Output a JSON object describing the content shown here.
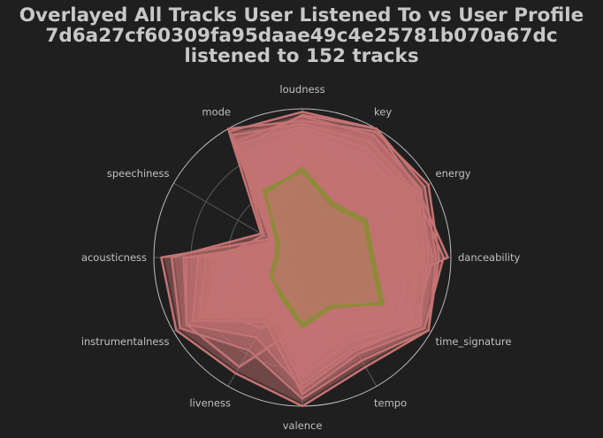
{
  "title_lines": [
    "Overlayed All Tracks User Listened To vs User Profile",
    "7d6a27cf60309fa95daae49c4e25781b070a67dc",
    "listened to 152 tracks"
  ],
  "colors": {
    "background": "#1f1f1f",
    "track_fill": "#c47373",
    "track_line": "#c47373",
    "profile_line": "#8f8a3a",
    "grid": "#5a5a5a",
    "outer_circle": "#bdbdbd",
    "text": "#c8c8c8"
  },
  "chart_data": {
    "type": "radar",
    "axes": [
      "danceability",
      "energy",
      "key",
      "loudness",
      "mode",
      "speechiness",
      "acousticness",
      "instrumentalness",
      "liveness",
      "valence",
      "tempo",
      "time_signature"
    ],
    "rlim": [
      0,
      1
    ],
    "grid": true,
    "profile": [
      0.48,
      0.5,
      0.42,
      0.6,
      0.5,
      0.2,
      0.18,
      0.25,
      0.28,
      0.45,
      0.38,
      0.63
    ],
    "profile_shapes": [
      [
        0.48,
        0.5,
        0.42,
        0.6,
        0.5,
        0.2,
        0.18,
        0.25,
        0.28,
        0.45,
        0.38,
        0.63
      ],
      [
        0.46,
        0.48,
        0.4,
        0.58,
        0.52,
        0.18,
        0.17,
        0.24,
        0.3,
        0.47,
        0.39,
        0.61
      ]
    ],
    "tracks": [
      [
        0.9,
        0.95,
        1.0,
        0.98,
        0.98,
        0.25,
        0.95,
        0.98,
        0.9,
        1.0,
        0.85,
        0.98
      ],
      [
        0.92,
        0.98,
        0.98,
        0.92,
        1.0,
        0.32,
        0.88,
        0.95,
        0.72,
        0.95,
        0.8,
        0.98
      ],
      [
        0.85,
        0.92,
        0.95,
        0.95,
        0.9,
        0.18,
        0.78,
        0.9,
        0.62,
        0.88,
        0.72,
        0.9
      ],
      [
        0.95,
        0.88,
        0.9,
        0.9,
        0.95,
        0.22,
        0.7,
        0.85,
        0.5,
        0.92,
        0.75,
        0.95
      ],
      [
        0.82,
        0.9,
        1.0,
        0.96,
        0.85,
        0.15,
        0.65,
        0.8,
        0.45,
        0.85,
        0.7,
        0.92
      ],
      [
        0.88,
        0.86,
        0.85,
        0.88,
        0.88,
        0.3,
        0.55,
        0.75,
        0.4,
        0.8,
        0.65,
        0.88
      ],
      [
        0.78,
        0.82,
        0.8,
        0.85,
        0.8,
        0.12,
        0.35,
        0.6,
        0.35,
        0.75,
        0.6,
        0.85
      ],
      [
        0.75,
        0.85,
        0.7,
        0.82,
        0.75,
        0.2,
        0.25,
        0.45,
        0.3,
        0.7,
        0.55,
        0.82
      ],
      [
        0.8,
        0.8,
        0.65,
        0.8,
        0.7,
        0.1,
        0.2,
        0.3,
        0.28,
        0.65,
        0.58,
        0.8
      ],
      [
        0.7,
        0.78,
        0.6,
        0.78,
        0.65,
        0.25,
        0.15,
        0.2,
        0.25,
        0.6,
        0.5,
        0.78
      ],
      [
        0.72,
        0.75,
        0.55,
        0.75,
        0.6,
        0.08,
        0.3,
        0.15,
        0.22,
        0.55,
        0.52,
        0.75
      ],
      [
        0.68,
        0.7,
        0.5,
        0.72,
        0.55,
        0.15,
        0.4,
        0.25,
        0.2,
        0.5,
        0.48,
        0.7
      ],
      [
        0.65,
        0.65,
        0.45,
        0.7,
        0.5,
        0.12,
        0.22,
        0.35,
        0.18,
        0.45,
        0.45,
        0.68
      ],
      [
        0.6,
        0.6,
        0.4,
        0.65,
        0.45,
        0.1,
        0.18,
        0.22,
        0.15,
        0.4,
        0.42,
        0.62
      ],
      [
        0.55,
        0.55,
        0.35,
        0.6,
        0.4,
        0.06,
        0.12,
        0.18,
        0.12,
        0.35,
        0.38,
        0.58
      ],
      [
        0.5,
        0.5,
        0.3,
        0.55,
        0.35,
        0.05,
        0.1,
        0.12,
        0.1,
        0.3,
        0.35,
        0.55
      ],
      [
        0.98,
        0.9,
        0.75,
        0.7,
        0.4,
        0.2,
        0.6,
        0.7,
        0.55,
        0.35,
        0.4,
        0.5
      ],
      [
        0.7,
        0.65,
        0.55,
        0.5,
        0.3,
        0.1,
        0.8,
        0.9,
        0.85,
        0.45,
        0.3,
        0.45
      ]
    ],
    "axis_labels": [
      "danceability",
      "energy",
      "key",
      "loudness",
      "mode",
      "speechiness",
      "acousticness",
      "instrumentalness",
      "liveness",
      "valence",
      "tempo",
      "time_signature"
    ]
  }
}
